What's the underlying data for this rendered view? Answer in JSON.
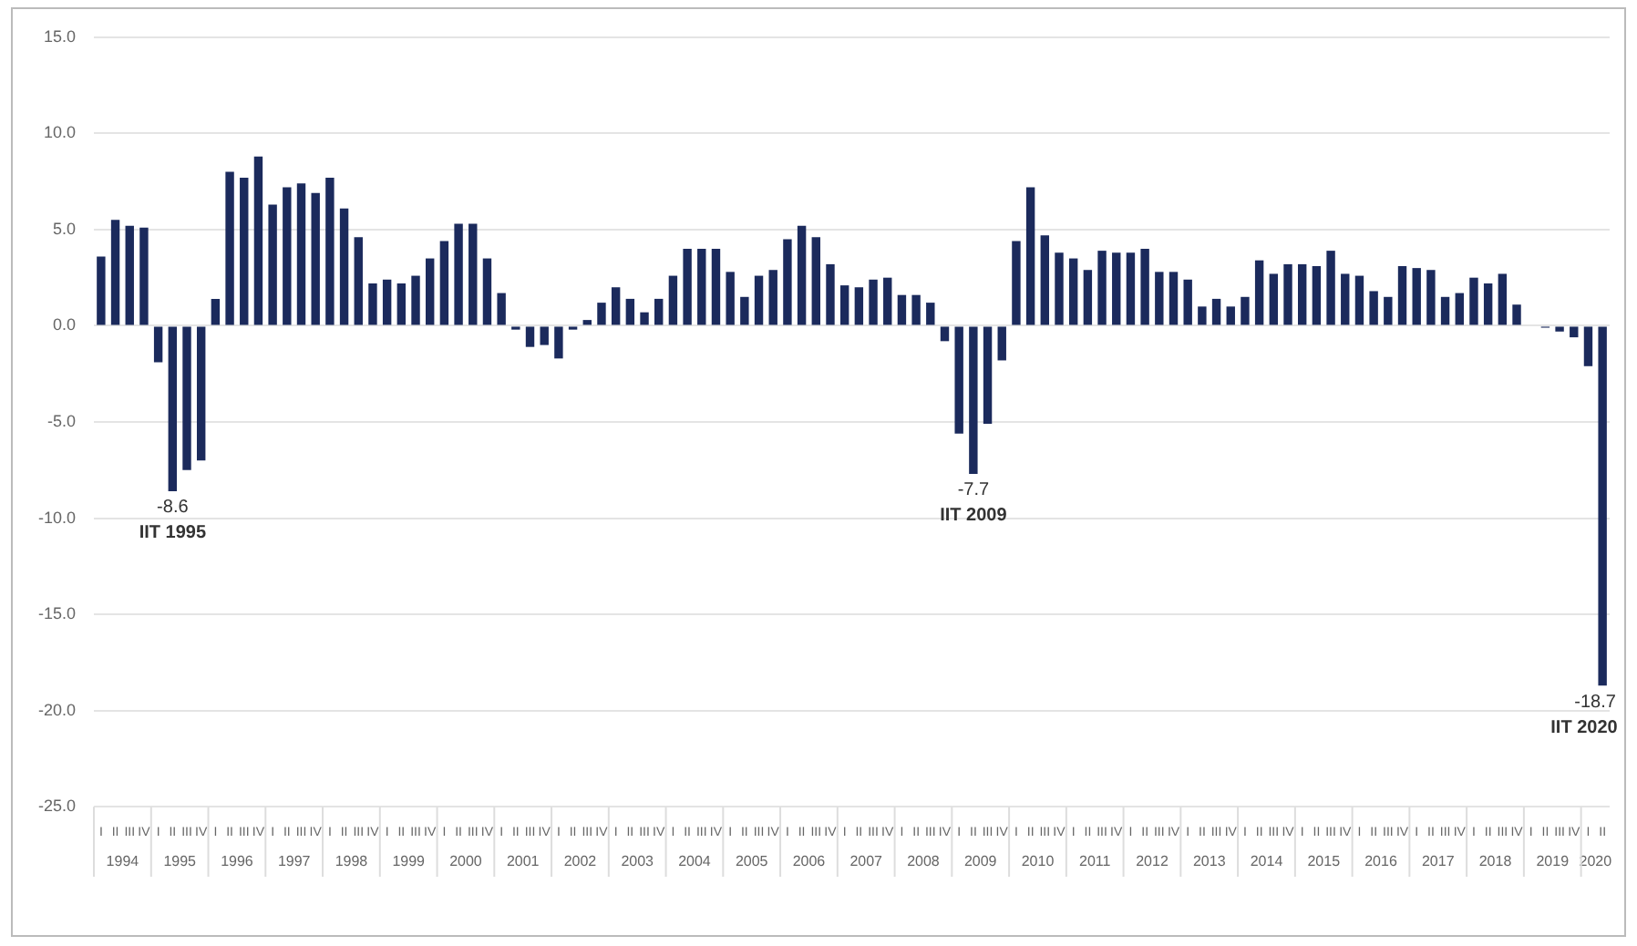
{
  "chart_data": {
    "type": "bar",
    "categories": [
      "I",
      "II",
      "III",
      "IV",
      "I",
      "II",
      "III",
      "IV",
      "I",
      "II",
      "III",
      "IV",
      "I",
      "II",
      "III",
      "IV",
      "I",
      "II",
      "III",
      "IV",
      "I",
      "II",
      "III",
      "IV",
      "I",
      "II",
      "III",
      "IV",
      "I",
      "II",
      "III",
      "IV",
      "I",
      "II",
      "III",
      "IV",
      "I",
      "II",
      "III",
      "IV",
      "I",
      "II",
      "III",
      "IV",
      "I",
      "II",
      "III",
      "IV",
      "I",
      "II",
      "III",
      "IV",
      "I",
      "II",
      "III",
      "IV",
      "I",
      "II",
      "III",
      "IV",
      "I",
      "II",
      "III",
      "IV",
      "I",
      "II",
      "III",
      "IV",
      "I",
      "II",
      "III",
      "IV",
      "I",
      "II",
      "III",
      "IV",
      "I",
      "II",
      "III",
      "IV",
      "I",
      "II",
      "III",
      "IV",
      "I",
      "II",
      "III",
      "IV",
      "I",
      "II",
      "III",
      "IV",
      "I",
      "II",
      "III",
      "IV",
      "I",
      "II",
      "III",
      "IV",
      "I",
      "II",
      "III",
      "IV",
      "I",
      "II"
    ],
    "values": [
      3.6,
      5.5,
      5.2,
      5.1,
      -1.9,
      -8.6,
      -7.5,
      -7.0,
      1.4,
      8.0,
      7.7,
      8.8,
      6.3,
      7.2,
      7.4,
      6.9,
      7.7,
      6.1,
      4.6,
      2.2,
      2.4,
      2.2,
      2.6,
      3.5,
      4.4,
      5.3,
      5.3,
      3.5,
      1.7,
      -0.2,
      -1.1,
      -1.0,
      -1.7,
      -0.2,
      0.3,
      1.2,
      2.0,
      1.4,
      0.7,
      1.4,
      2.6,
      4.0,
      4.0,
      4.0,
      2.8,
      1.5,
      2.6,
      2.9,
      4.5,
      5.2,
      4.6,
      3.2,
      2.1,
      2.0,
      2.4,
      2.5,
      1.6,
      1.6,
      1.2,
      -0.8,
      -5.6,
      -7.7,
      -5.1,
      -1.8,
      4.4,
      7.2,
      4.7,
      3.8,
      3.5,
      2.9,
      3.9,
      3.8,
      3.8,
      4.0,
      2.8,
      2.8,
      2.4,
      1.0,
      1.4,
      1.0,
      1.5,
      3.4,
      2.7,
      3.2,
      3.2,
      3.1,
      3.9,
      2.7,
      2.6,
      1.8,
      1.5,
      3.1,
      3.0,
      2.9,
      1.5,
      1.7,
      2.5,
      2.2,
      2.7,
      1.1,
      0.0,
      -0.1,
      -0.3,
      -0.6,
      -2.1,
      -18.7
    ],
    "value_labels": [
      null,
      null,
      null,
      null,
      null,
      "-8.6",
      null,
      null,
      null,
      null,
      null,
      null,
      null,
      null,
      null,
      null,
      null,
      null,
      null,
      null,
      null,
      null,
      null,
      null,
      null,
      null,
      null,
      null,
      null,
      null,
      null,
      null,
      null,
      null,
      null,
      null,
      null,
      null,
      null,
      null,
      null,
      null,
      null,
      null,
      null,
      null,
      null,
      null,
      null,
      null,
      null,
      null,
      null,
      null,
      null,
      null,
      null,
      null,
      null,
      null,
      null,
      "-7.7",
      null,
      null,
      null,
      null,
      null,
      null,
      null,
      null,
      null,
      null,
      null,
      null,
      null,
      null,
      null,
      null,
      null,
      null,
      null,
      null,
      null,
      null,
      null,
      null,
      null,
      null,
      null,
      null,
      null,
      null,
      null,
      null,
      null,
      null,
      null,
      null,
      null,
      null,
      null,
      null,
      null,
      null,
      null,
      "-18.7"
    ],
    "color": "#1b2a5c",
    "ylim": [
      -25,
      15
    ],
    "yticks": [
      {
        "value": -25,
        "label": "-25.0"
      },
      {
        "value": -20,
        "label": "-20.0"
      },
      {
        "value": -15,
        "label": "-15.0"
      },
      {
        "value": -10,
        "label": "-10.0"
      },
      {
        "value": -5,
        "label": "-5.0"
      },
      {
        "value": 0,
        "label": "0.0"
      },
      {
        "value": 5,
        "label": "5.0"
      },
      {
        "value": 10,
        "label": "10.0"
      },
      {
        "value": 15,
        "label": "15.0"
      }
    ],
    "grid": "y",
    "annotations": [
      "1994",
      "1995",
      "1996",
      "1997",
      "1998",
      "1999",
      "2000",
      "2001",
      "2002",
      "2003",
      "2004",
      "2005",
      "2006",
      "2007",
      "2008",
      "2009",
      "2010",
      "2011",
      "2012",
      "2013",
      "2014",
      "2015",
      "2016",
      "2017",
      "2018",
      "2019",
      "2020",
      "IIT 1995",
      "IIT 2009",
      "IIT 2020"
    ]
  }
}
